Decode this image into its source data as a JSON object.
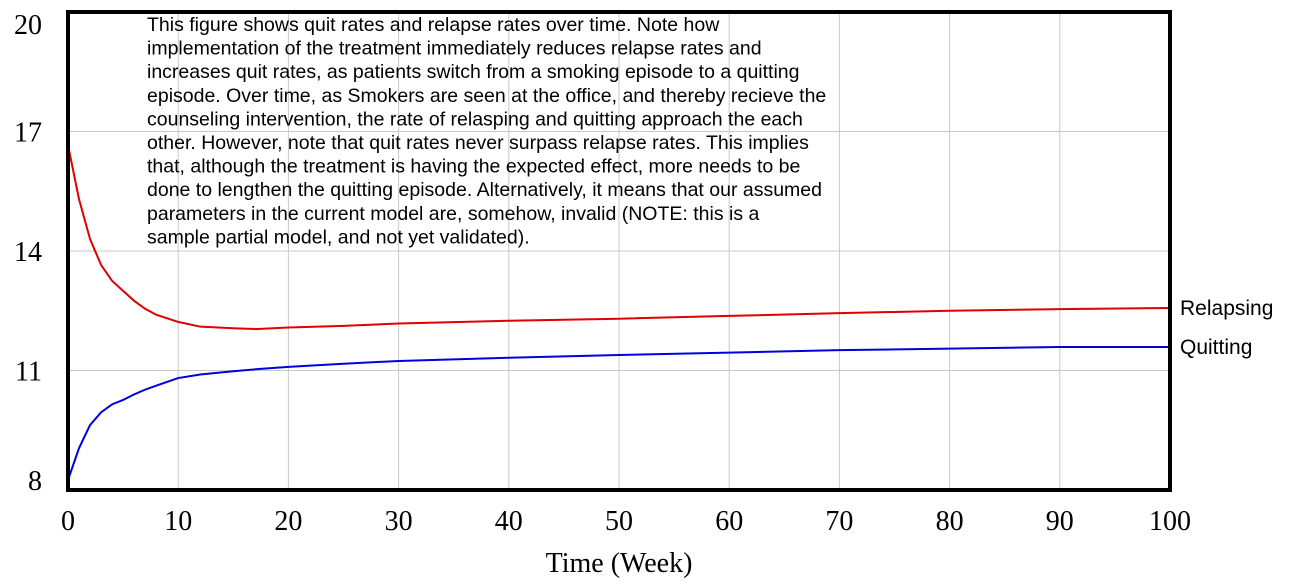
{
  "chart_data": {
    "type": "line",
    "xlabel": "Time (Week)",
    "annotation": [
      "This figure shows quit rates and relapse rates over time. Note how",
      "implementation of the treatment immediately reduces relapse rates and",
      "increases quit rates, as patients switch from a smoking episode to a quitting",
      "episode. Over time, as Smokers are seen at the office, and thereby recieve the",
      "counseling intervention, the rate of relasping and quitting approach the each",
      "other. However, note that quit rates never surpass relapse rates. This implies",
      "that, although the treatment is having the expected effect, more needs to be",
      "done to lengthen the quitting episode. Alternatively, it means that our assumed",
      "parameters in the current model are, somehow, invalid (NOTE: this is a",
      "sample partial model, and not yet validated)."
    ],
    "x": [
      0,
      1,
      2,
      3,
      4,
      5,
      6,
      7,
      8,
      10,
      12,
      15,
      17,
      20,
      25,
      30,
      40,
      50,
      60,
      70,
      80,
      90,
      100
    ],
    "series": [
      {
        "name": "Relapsing",
        "color": "#e00000",
        "values": [
          16.66,
          15.3,
          14.3,
          13.65,
          13.25,
          13.0,
          12.75,
          12.55,
          12.4,
          12.22,
          12.1,
          12.06,
          12.04,
          12.08,
          12.12,
          12.18,
          12.25,
          12.3,
          12.37,
          12.44,
          12.5,
          12.54,
          12.57
        ]
      },
      {
        "name": "Quitting",
        "color": "#0000dd",
        "values": [
          8.25,
          9.05,
          9.63,
          9.95,
          10.15,
          10.26,
          10.4,
          10.52,
          10.62,
          10.81,
          10.9,
          10.98,
          11.03,
          11.09,
          11.17,
          11.24,
          11.32,
          11.39,
          11.45,
          11.51,
          11.55,
          11.59,
          11.59
        ]
      }
    ],
    "xlim": [
      0,
      100
    ],
    "xticks": [
      0,
      10,
      20,
      30,
      40,
      50,
      60,
      70,
      80,
      90,
      100
    ],
    "ylim": [
      8,
      20
    ],
    "yticks": [
      8,
      11,
      14,
      17,
      20
    ],
    "grid": true
  }
}
